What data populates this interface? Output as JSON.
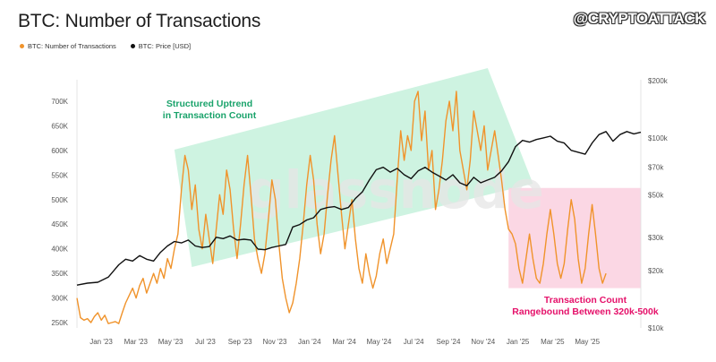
{
  "title": "BTC: Number of Transactions",
  "brand": "@CRYPTOATTACK",
  "watermark": "glassnode",
  "legend": [
    {
      "label": "BTC: Number of Transactions",
      "color": "#f0932b"
    },
    {
      "label": "BTC: Price [USD]",
      "color": "#111111"
    }
  ],
  "annotations": {
    "uptrend_line1": "Structured Uptrend",
    "uptrend_line2": "in Transaction Count",
    "range_line1": "Transaction Count",
    "range_line2": "Rangebound Between 320k-500k"
  },
  "colors": {
    "tx": "#f0932b",
    "price": "#111111",
    "green_zone": "#c6f1dc",
    "pink_zone": "#fbd3e1"
  },
  "chart_data": {
    "type": "line",
    "x_ticks": [
      "Jan '23",
      "Mar '23",
      "May '23",
      "Jul '23",
      "Sep '23",
      "Nov '23",
      "Jan '24",
      "Mar '24",
      "May '24",
      "Jul '24",
      "Sep '24",
      "Nov '24",
      "Jan '25",
      "Mar '25",
      "May '25"
    ],
    "y_left_ticks": [
      "250K",
      "300K",
      "350K",
      "400K",
      "450K",
      "500K",
      "550K",
      "600K",
      "650K",
      "700K"
    ],
    "y_left_range": [
      240000,
      740000
    ],
    "y_right_ticks": [
      "$10k",
      "$20k",
      "$30k",
      "$50k",
      "$70k",
      "$100k",
      "$200k"
    ],
    "y_right_values": [
      10000,
      20000,
      30000,
      50000,
      70000,
      100000,
      200000
    ],
    "y_right_scale": "log",
    "series": [
      {
        "name": "BTC: Number of Transactions",
        "axis": "left",
        "points": [
          [
            0,
            300000
          ],
          [
            1,
            260000
          ],
          [
            2,
            255000
          ],
          [
            3,
            258000
          ],
          [
            4,
            250000
          ],
          [
            5,
            262000
          ],
          [
            6,
            270000
          ],
          [
            7,
            255000
          ],
          [
            8,
            265000
          ],
          [
            9,
            248000
          ],
          [
            10,
            250000
          ],
          [
            11,
            252000
          ],
          [
            12,
            248000
          ],
          [
            13,
            270000
          ],
          [
            14,
            290000
          ],
          [
            15,
            305000
          ],
          [
            16,
            320000
          ],
          [
            17,
            300000
          ],
          [
            18,
            325000
          ],
          [
            19,
            340000
          ],
          [
            20,
            310000
          ],
          [
            21,
            330000
          ],
          [
            22,
            350000
          ],
          [
            23,
            330000
          ],
          [
            24,
            360000
          ],
          [
            25,
            340000
          ],
          [
            26,
            380000
          ],
          [
            27,
            360000
          ],
          [
            28,
            400000
          ],
          [
            29,
            430000
          ],
          [
            30,
            520000
          ],
          [
            31,
            590000
          ],
          [
            32,
            560000
          ],
          [
            33,
            480000
          ],
          [
            34,
            530000
          ],
          [
            35,
            440000
          ],
          [
            36,
            400000
          ],
          [
            37,
            470000
          ],
          [
            38,
            420000
          ],
          [
            39,
            370000
          ],
          [
            40,
            440000
          ],
          [
            41,
            510000
          ],
          [
            42,
            470000
          ],
          [
            43,
            560000
          ],
          [
            44,
            520000
          ],
          [
            45,
            440000
          ],
          [
            46,
            380000
          ],
          [
            47,
            450000
          ],
          [
            48,
            530000
          ],
          [
            49,
            590000
          ],
          [
            50,
            510000
          ],
          [
            51,
            420000
          ],
          [
            52,
            380000
          ],
          [
            53,
            350000
          ],
          [
            54,
            390000
          ],
          [
            55,
            460000
          ],
          [
            56,
            540000
          ],
          [
            57,
            500000
          ],
          [
            58,
            410000
          ],
          [
            59,
            340000
          ],
          [
            60,
            300000
          ],
          [
            61,
            270000
          ],
          [
            62,
            290000
          ],
          [
            63,
            330000
          ],
          [
            64,
            380000
          ],
          [
            65,
            450000
          ],
          [
            66,
            530000
          ],
          [
            67,
            590000
          ],
          [
            68,
            540000
          ],
          [
            69,
            450000
          ],
          [
            70,
            390000
          ],
          [
            71,
            430000
          ],
          [
            72,
            510000
          ],
          [
            73,
            580000
          ],
          [
            74,
            630000
          ],
          [
            75,
            550000
          ],
          [
            76,
            470000
          ],
          [
            77,
            400000
          ],
          [
            78,
            450000
          ],
          [
            79,
            500000
          ],
          [
            80,
            420000
          ],
          [
            81,
            360000
          ],
          [
            82,
            330000
          ],
          [
            83,
            390000
          ],
          [
            84,
            350000
          ],
          [
            85,
            320000
          ],
          [
            86,
            345000
          ],
          [
            87,
            390000
          ],
          [
            88,
            420000
          ],
          [
            89,
            370000
          ],
          [
            90,
            400000
          ],
          [
            91,
            430000
          ],
          [
            92,
            540000
          ],
          [
            93,
            640000
          ],
          [
            94,
            580000
          ],
          [
            95,
            630000
          ],
          [
            96,
            600000
          ],
          [
            97,
            700000
          ],
          [
            98,
            720000
          ],
          [
            99,
            620000
          ],
          [
            100,
            680000
          ],
          [
            101,
            560000
          ],
          [
            102,
            600000
          ],
          [
            103,
            480000
          ],
          [
            104,
            520000
          ],
          [
            105,
            580000
          ],
          [
            106,
            660000
          ],
          [
            107,
            700000
          ],
          [
            108,
            640000
          ],
          [
            109,
            720000
          ],
          [
            110,
            600000
          ],
          [
            111,
            560000
          ],
          [
            112,
            520000
          ],
          [
            113,
            580000
          ],
          [
            114,
            680000
          ],
          [
            115,
            640000
          ],
          [
            116,
            600000
          ],
          [
            117,
            650000
          ],
          [
            118,
            560000
          ],
          [
            119,
            600000
          ],
          [
            120,
            640000
          ],
          [
            121,
            590000
          ],
          [
            122,
            540000
          ],
          [
            123,
            480000
          ],
          [
            124,
            440000
          ],
          [
            125,
            430000
          ],
          [
            126,
            410000
          ],
          [
            127,
            360000
          ],
          [
            128,
            330000
          ],
          [
            129,
            380000
          ],
          [
            130,
            430000
          ],
          [
            131,
            380000
          ],
          [
            132,
            340000
          ],
          [
            133,
            330000
          ],
          [
            134,
            370000
          ],
          [
            135,
            430000
          ],
          [
            136,
            480000
          ],
          [
            137,
            430000
          ],
          [
            138,
            370000
          ],
          [
            139,
            340000
          ],
          [
            140,
            370000
          ],
          [
            141,
            440000
          ],
          [
            142,
            500000
          ],
          [
            143,
            460000
          ],
          [
            144,
            380000
          ],
          [
            145,
            330000
          ],
          [
            146,
            360000
          ],
          [
            147,
            430000
          ],
          [
            148,
            490000
          ],
          [
            149,
            430000
          ],
          [
            150,
            360000
          ],
          [
            151,
            330000
          ],
          [
            152,
            350000
          ]
        ]
      },
      {
        "name": "BTC: Price [USD]",
        "axis": "right",
        "points": [
          [
            0,
            16800
          ],
          [
            3,
            17200
          ],
          [
            6,
            17400
          ],
          [
            9,
            18500
          ],
          [
            12,
            21500
          ],
          [
            14,
            23000
          ],
          [
            16,
            22500
          ],
          [
            18,
            24000
          ],
          [
            20,
            23000
          ],
          [
            22,
            22500
          ],
          [
            24,
            25000
          ],
          [
            26,
            27000
          ],
          [
            28,
            28500
          ],
          [
            30,
            28000
          ],
          [
            32,
            29000
          ],
          [
            34,
            27000
          ],
          [
            36,
            26500
          ],
          [
            38,
            26800
          ],
          [
            40,
            30000
          ],
          [
            42,
            29500
          ],
          [
            44,
            30500
          ],
          [
            46,
            29000
          ],
          [
            48,
            29300
          ],
          [
            50,
            29000
          ],
          [
            52,
            26000
          ],
          [
            54,
            25800
          ],
          [
            56,
            26500
          ],
          [
            58,
            27000
          ],
          [
            60,
            27500
          ],
          [
            62,
            34000
          ],
          [
            64,
            35000
          ],
          [
            66,
            37000
          ],
          [
            68,
            38000
          ],
          [
            70,
            42000
          ],
          [
            72,
            43000
          ],
          [
            74,
            43500
          ],
          [
            76,
            42000
          ],
          [
            78,
            43000
          ],
          [
            80,
            48000
          ],
          [
            82,
            52000
          ],
          [
            84,
            60000
          ],
          [
            86,
            68000
          ],
          [
            88,
            70000
          ],
          [
            90,
            66000
          ],
          [
            92,
            69000
          ],
          [
            94,
            64000
          ],
          [
            96,
            61000
          ],
          [
            98,
            67000
          ],
          [
            100,
            70000
          ],
          [
            102,
            66000
          ],
          [
            104,
            63000
          ],
          [
            106,
            60000
          ],
          [
            108,
            64000
          ],
          [
            110,
            58000
          ],
          [
            112,
            56000
          ],
          [
            114,
            62000
          ],
          [
            116,
            58000
          ],
          [
            118,
            60000
          ],
          [
            120,
            62000
          ],
          [
            122,
            67000
          ],
          [
            124,
            75000
          ],
          [
            126,
            90000
          ],
          [
            128,
            97000
          ],
          [
            130,
            95000
          ],
          [
            132,
            98000
          ],
          [
            134,
            100000
          ],
          [
            136,
            102000
          ],
          [
            138,
            96000
          ],
          [
            140,
            94000
          ],
          [
            142,
            86000
          ],
          [
            144,
            84000
          ],
          [
            146,
            82000
          ],
          [
            148,
            94000
          ],
          [
            150,
            104000
          ],
          [
            152,
            108000
          ]
        ]
      },
      {
        "name": "BTC: Price [USD]",
        "axis": "right",
        "points": [
          [
            126,
            90000
          ],
          [
            128,
            97000
          ],
          [
            130,
            94000
          ],
          [
            132,
            100000
          ],
          [
            134,
            102000
          ],
          [
            136,
            99000
          ],
          [
            138,
            96000
          ],
          [
            140,
            97000
          ],
          [
            142,
            86000
          ],
          [
            144,
            84000
          ],
          [
            146,
            79000
          ],
          [
            148,
            82000
          ],
          [
            150,
            85000
          ],
          [
            152,
            94000
          ],
          [
            154,
            96000
          ],
          [
            156,
            104000
          ],
          [
            158,
            108000
          ],
          [
            160,
            105000
          ],
          [
            162,
            107000
          ]
        ]
      }
    ],
    "zones": [
      {
        "type": "uptrend_band",
        "color": "#c6f1dc"
      },
      {
        "type": "range_box",
        "color": "#fbd3e1",
        "range": [
          320000,
          500000
        ]
      }
    ]
  }
}
